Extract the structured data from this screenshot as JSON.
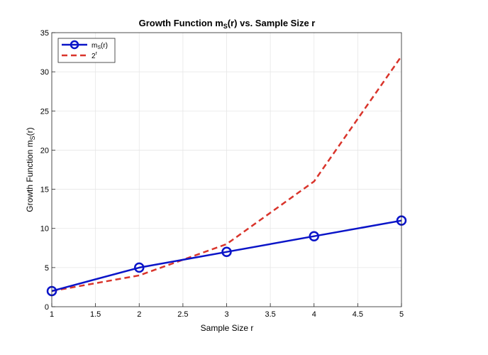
{
  "chart_data": {
    "type": "line",
    "title": {
      "pre": "Growth  Function  m",
      "sub": "S",
      "post": "(r)  vs.  Sample  Size  r"
    },
    "xlabel": "Sample Size r",
    "ylabel": {
      "pre": "Growth  Function  m",
      "sub": "S",
      "post": "(r)"
    },
    "xlim": [
      1,
      5
    ],
    "ylim": [
      0,
      35
    ],
    "xticks": [
      1,
      1.5,
      2,
      2.5,
      3,
      3.5,
      4,
      4.5,
      5
    ],
    "yticks": [
      0,
      5,
      10,
      15,
      20,
      25,
      30,
      35
    ],
    "grid": true,
    "legend_position": "top-left",
    "x": [
      1,
      2,
      3,
      4,
      5
    ],
    "series": [
      {
        "legend_parts": {
          "base": "m",
          "sub": "S",
          "post": "(r)",
          "sup": ""
        },
        "values": [
          2,
          5,
          7,
          9,
          11
        ],
        "color": "#0a14c8",
        "style": "solid",
        "marker": "circle"
      },
      {
        "legend_parts": {
          "base": "2",
          "sub": "",
          "post": "",
          "sup": "r"
        },
        "values": [
          2,
          4,
          8,
          16,
          32
        ],
        "color": "#d9342b",
        "style": "dashed",
        "marker": "none"
      }
    ]
  }
}
